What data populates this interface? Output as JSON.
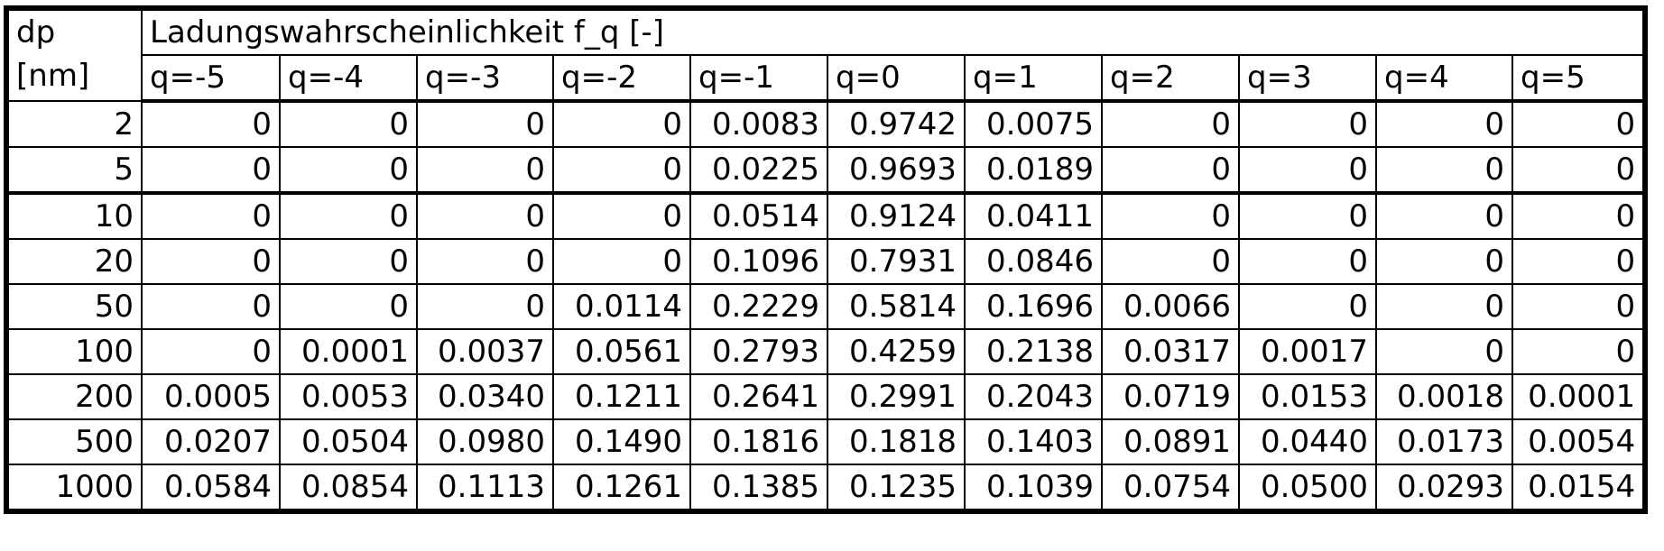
{
  "table": {
    "dp_header": [
      "dp",
      "[nm]"
    ],
    "title": "Ladungswahrscheinlichkeit f_q [-]",
    "columns": [
      "q=-5",
      "q=-4",
      "q=-3",
      "q=-2",
      "q=-1",
      "q=0",
      "q=1",
      "q=2",
      "q=3",
      "q=4",
      "q=5"
    ],
    "rows": [
      {
        "dp": "2",
        "values": [
          "0",
          "0",
          "0",
          "0",
          "0.0083",
          "0.9742",
          "0.0075",
          "0",
          "0",
          "0",
          "0"
        ]
      },
      {
        "dp": "5",
        "values": [
          "0",
          "0",
          "0",
          "0",
          "0.0225",
          "0.9693",
          "0.0189",
          "0",
          "0",
          "0",
          "0"
        ]
      },
      {
        "dp": "10",
        "values": [
          "0",
          "0",
          "0",
          "0",
          "0.0514",
          "0.9124",
          "0.0411",
          "0",
          "0",
          "0",
          "0"
        ]
      },
      {
        "dp": "20",
        "values": [
          "0",
          "0",
          "0",
          "0",
          "0.1096",
          "0.7931",
          "0.0846",
          "0",
          "0",
          "0",
          "0"
        ]
      },
      {
        "dp": "50",
        "values": [
          "0",
          "0",
          "0",
          "0.0114",
          "0.2229",
          "0.5814",
          "0.1696",
          "0.0066",
          "0",
          "0",
          "0"
        ]
      },
      {
        "dp": "100",
        "values": [
          "0",
          "0.0001",
          "0.0037",
          "0.0561",
          "0.2793",
          "0.4259",
          "0.2138",
          "0.0317",
          "0.0017",
          "0",
          "0"
        ]
      },
      {
        "dp": "200",
        "values": [
          "0.0005",
          "0.0053",
          "0.0340",
          "0.1211",
          "0.2641",
          "0.2991",
          "0.2043",
          "0.0719",
          "0.0153",
          "0.0018",
          "0.0001"
        ]
      },
      {
        "dp": "500",
        "values": [
          "0.0207",
          "0.0504",
          "0.0980",
          "0.1490",
          "0.1816",
          "0.1818",
          "0.1403",
          "0.0891",
          "0.0440",
          "0.0173",
          "0.0054"
        ]
      },
      {
        "dp": "1000",
        "values": [
          "0.0584",
          "0.0854",
          "0.1113",
          "0.1261",
          "0.1385",
          "0.1235",
          "0.1039",
          "0.0754",
          "0.0500",
          "0.0293",
          "0.0154"
        ]
      }
    ]
  }
}
